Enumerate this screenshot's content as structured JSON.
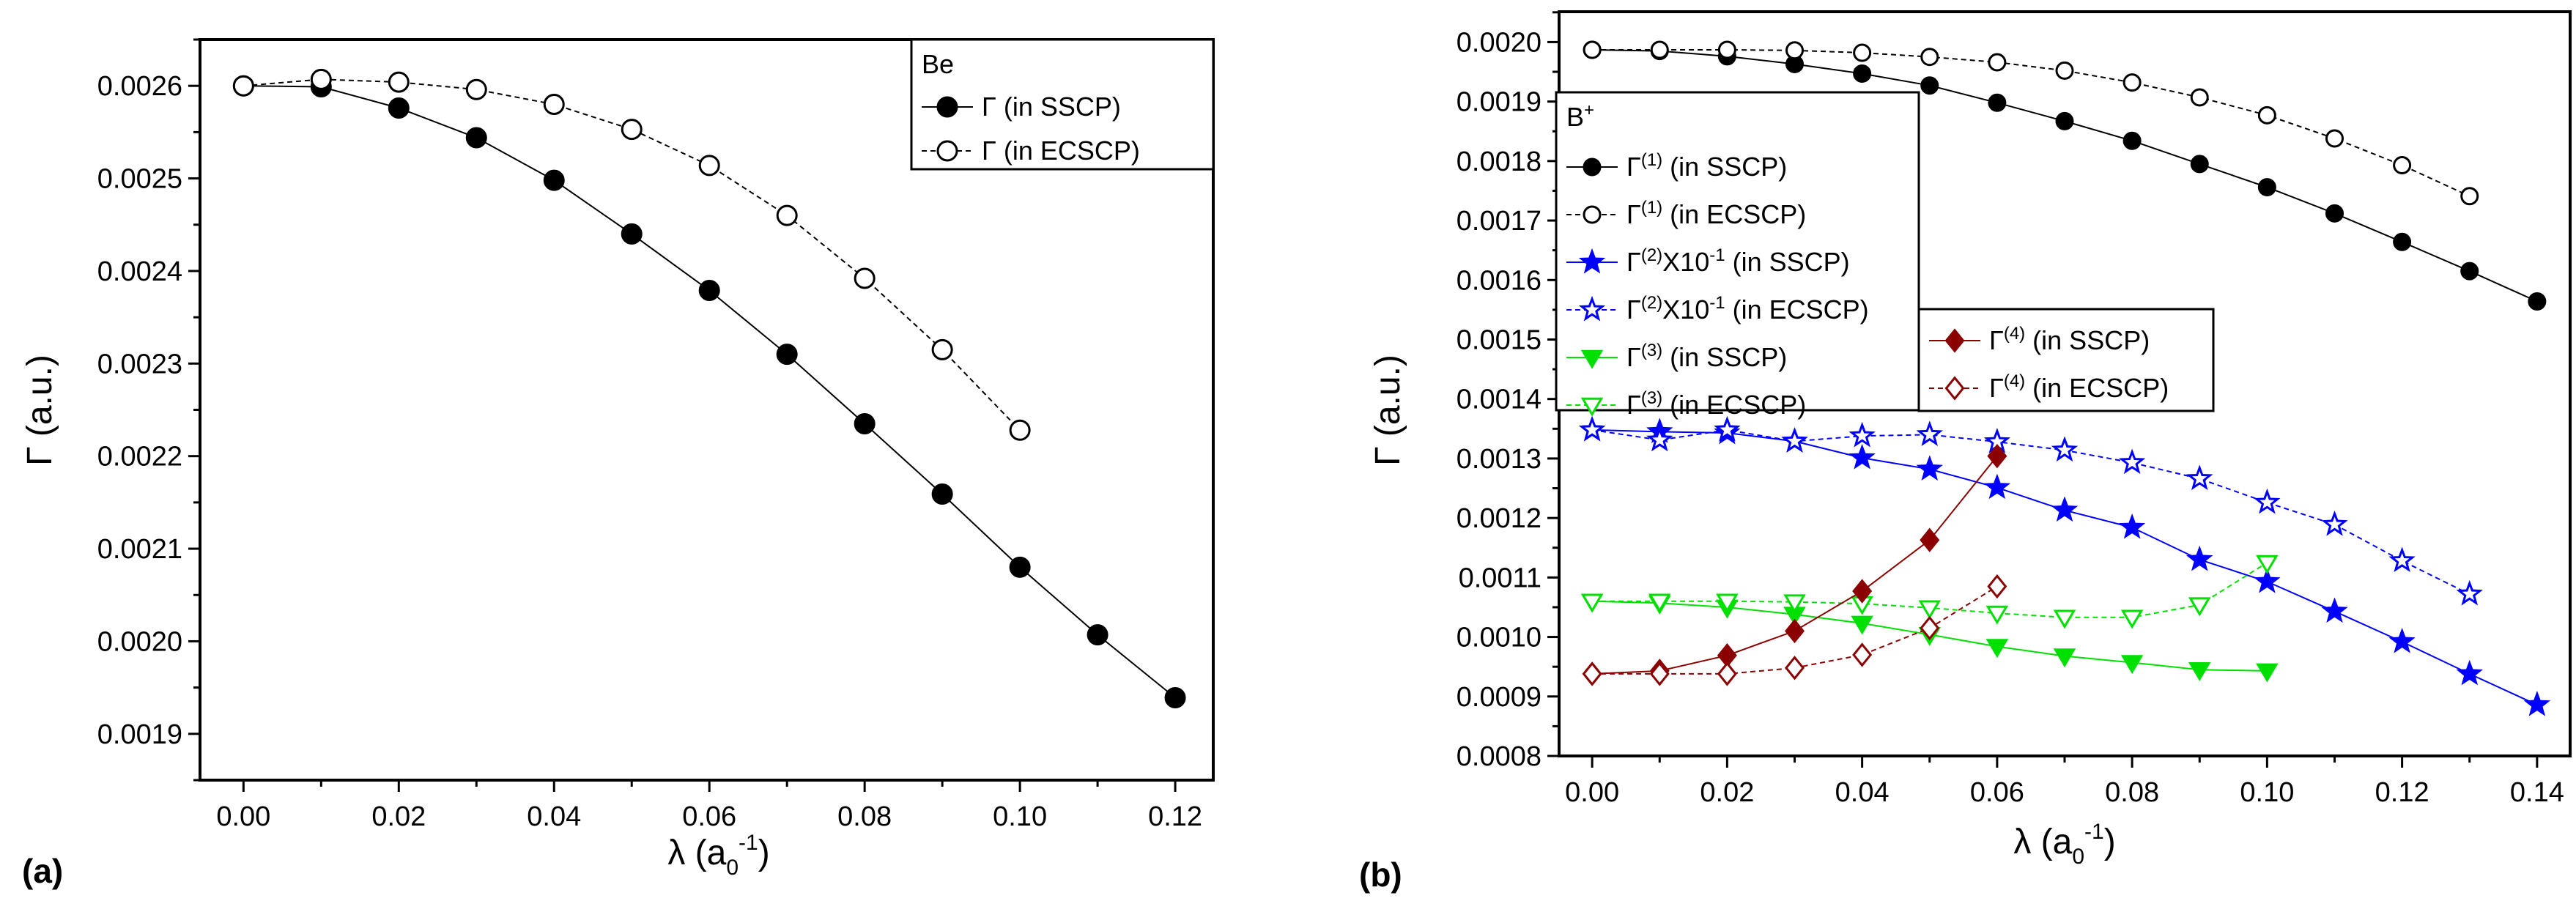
{
  "chart_data": [
    {
      "type": "line",
      "panel_label": "(a)",
      "xlabel": {
        "base": "λ (a",
        "sub": "0",
        "sup": "-1",
        "end": ")"
      },
      "ylabel": "Γ (a.u.)",
      "xlim": [
        -0.0056,
        0.1249
      ],
      "ylim": [
        0.00185,
        0.00265
      ],
      "xticks": [
        "0.00",
        "0.02",
        "0.04",
        "0.06",
        "0.08",
        "0.10",
        "0.12"
      ],
      "yticks": [
        "0.0019",
        "0.0020",
        "0.0021",
        "0.0022",
        "0.0023",
        "0.0024",
        "0.0025",
        "0.0026"
      ],
      "legend": {
        "title": "Be",
        "title_sup": "",
        "placement": "top-right"
      },
      "series": [
        {
          "name": "Γ (in SSCP)",
          "label": {
            "base": "Γ",
            "sup": "",
            "mid": "",
            "sup2": "",
            "rest": " (in SSCP)"
          },
          "color": "#000000",
          "marker": "circle",
          "filled": true,
          "dashed": false,
          "x": [
            0,
            0.01,
            0.02,
            0.03,
            0.04,
            0.05,
            0.06,
            0.07,
            0.08,
            0.09,
            0.1,
            0.11,
            0.12
          ],
          "y": [
            0.0026,
            0.002599,
            0.002576,
            0.002544,
            0.002498,
            0.00244,
            0.002379,
            0.00231,
            0.002235,
            0.002159,
            0.00208,
            0.002007,
            0.001939
          ]
        },
        {
          "name": "Γ (in ECSCP)",
          "label": {
            "base": "Γ",
            "sup": "",
            "mid": "",
            "sup2": "",
            "rest": " (in ECSCP)"
          },
          "color": "#000000",
          "marker": "circle",
          "filled": false,
          "dashed": true,
          "x": [
            0,
            0.01,
            0.02,
            0.03,
            0.04,
            0.05,
            0.06,
            0.07,
            0.08,
            0.09,
            0.1
          ],
          "y": [
            0.0026,
            0.002607,
            0.002604,
            0.002596,
            0.00258,
            0.002553,
            0.002514,
            0.00246,
            0.002392,
            0.002315,
            0.002228
          ]
        }
      ]
    },
    {
      "type": "line",
      "panel_label": "(b)",
      "xlabel": {
        "base": "λ (a",
        "sub": "0",
        "sup": "-1",
        "end": ")"
      },
      "ylabel": "Γ (a.u.)",
      "xlim": [
        -0.0049,
        0.1449
      ],
      "ylim": [
        0.0008,
        0.002051
      ],
      "xticks": [
        "0.00",
        "0.02",
        "0.04",
        "0.06",
        "0.08",
        "0.10",
        "0.12",
        "0.14"
      ],
      "yticks": [
        "0.0008",
        "0.0009",
        "0.0010",
        "0.0011",
        "0.0012",
        "0.0013",
        "0.0014",
        "0.0015",
        "0.0016",
        "0.0017",
        "0.0018",
        "0.0019",
        "0.0020"
      ],
      "legend": {
        "title": "B",
        "title_sup": "+",
        "placement": "upper-left"
      },
      "series": [
        {
          "name": "Γ(1) (in SSCP)",
          "label": {
            "base": "Γ",
            "sup": "(1)",
            "mid": "",
            "sup2": "",
            "rest": " (in SSCP)"
          },
          "color": "#000000",
          "marker": "circle",
          "filled": true,
          "dashed": false,
          "legend_group": 1,
          "x": [
            0,
            0.01,
            0.02,
            0.03,
            0.04,
            0.05,
            0.06,
            0.07,
            0.08,
            0.09,
            0.1,
            0.11,
            0.12,
            0.13,
            0.14
          ],
          "y": [
            0.001987,
            0.001985,
            0.001976,
            0.001963,
            0.001947,
            0.001927,
            0.001898,
            0.001867,
            0.001834,
            0.001795,
            0.001756,
            0.001712,
            0.001664,
            0.001615,
            0.001564
          ]
        },
        {
          "name": "Γ(1) (in ECSCP)",
          "label": {
            "base": "Γ",
            "sup": "(1)",
            "mid": "",
            "sup2": "",
            "rest": " (in ECSCP)"
          },
          "color": "#000000",
          "marker": "circle",
          "filled": false,
          "dashed": true,
          "legend_group": 1,
          "x": [
            0,
            0.01,
            0.02,
            0.03,
            0.04,
            0.05,
            0.06,
            0.07,
            0.08,
            0.09,
            0.1,
            0.11,
            0.12,
            0.13
          ],
          "y": [
            0.001987,
            0.001987,
            0.001987,
            0.001986,
            0.001982,
            0.001975,
            0.001966,
            0.001952,
            0.001932,
            0.001907,
            0.001877,
            0.001838,
            0.001793,
            0.001741
          ]
        },
        {
          "name": "Γ(2)X10-1 (in SSCP)",
          "label": {
            "base": "Γ",
            "sup": "(2)",
            "mid": "X10",
            "sup2": "-1",
            "rest": " (in SSCP)"
          },
          "color": "#0000FF",
          "marker": "star",
          "filled": true,
          "dashed": false,
          "legend_group": 1,
          "x": [
            0,
            0.01,
            0.02,
            0.03,
            0.04,
            0.05,
            0.06,
            0.07,
            0.08,
            0.09,
            0.1,
            0.11,
            0.12,
            0.13,
            0.14
          ],
          "y": [
            0.001348,
            0.001345,
            0.001343,
            0.001329,
            0.001301,
            0.001282,
            0.001251,
            0.001213,
            0.001184,
            0.00113,
            0.001093,
            0.001043,
            0.000992,
            0.000938,
            0.000886
          ]
        },
        {
          "name": "Γ(2)X10-1 (in ECSCP)",
          "label": {
            "base": "Γ",
            "sup": "(2)",
            "mid": "X10",
            "sup2": "-1",
            "rest": " (in ECSCP)"
          },
          "color": "#0000FF",
          "marker": "star",
          "filled": false,
          "dashed": true,
          "legend_group": 1,
          "x": [
            0,
            0.01,
            0.02,
            0.03,
            0.04,
            0.05,
            0.06,
            0.07,
            0.08,
            0.09,
            0.1,
            0.11,
            0.12,
            0.13
          ],
          "y": [
            0.001348,
            0.001331,
            0.001348,
            0.001329,
            0.001338,
            0.00134,
            0.001328,
            0.001314,
            0.001293,
            0.001266,
            0.001226,
            0.001189,
            0.001128,
            0.001072
          ]
        },
        {
          "name": "Γ(3) (in SSCP)",
          "label": {
            "base": "Γ",
            "sup": "(3)",
            "mid": "",
            "sup2": "",
            "rest": " (in SSCP)"
          },
          "color": "#00E000",
          "marker": "triangle-down",
          "filled": true,
          "dashed": false,
          "legend_group": 1,
          "x": [
            0,
            0.01,
            0.02,
            0.03,
            0.04,
            0.05,
            0.06,
            0.07,
            0.08,
            0.09,
            0.1
          ],
          "y": [
            0.00106,
            0.001057,
            0.00105,
            0.001038,
            0.001023,
            0.001004,
            0.000984,
            0.000968,
            0.000957,
            0.000945,
            0.000943
          ]
        },
        {
          "name": "Γ(3) (in ECSCP)",
          "label": {
            "base": "Γ",
            "sup": "(3)",
            "mid": "",
            "sup2": "",
            "rest": " (in ECSCP)"
          },
          "color": "#00E000",
          "marker": "triangle-down",
          "filled": false,
          "dashed": true,
          "legend_group": 1,
          "x": [
            0,
            0.01,
            0.02,
            0.03,
            0.04,
            0.05,
            0.06,
            0.07,
            0.08,
            0.09,
            0.1
          ],
          "y": [
            0.00106,
            0.00106,
            0.00106,
            0.001059,
            0.001056,
            0.001049,
            0.00104,
            0.001033,
            0.001033,
            0.001054,
            0.001125
          ]
        },
        {
          "name": "Γ(4) (in SSCP)",
          "label": {
            "base": "Γ",
            "sup": "(4)",
            "mid": "",
            "sup2": "",
            "rest": " (in SSCP)"
          },
          "color": "#8B0000",
          "marker": "diamond",
          "filled": true,
          "dashed": false,
          "legend_group": 2,
          "x": [
            0,
            0.01,
            0.02,
            0.03,
            0.04,
            0.05,
            0.06
          ],
          "y": [
            0.000938,
            0.000943,
            0.000969,
            0.00101,
            0.001077,
            0.001163,
            0.001304
          ]
        },
        {
          "name": "Γ(4) (in ECSCP)",
          "label": {
            "base": "Γ",
            "sup": "(4)",
            "mid": "",
            "sup2": "",
            "rest": " (in ECSCP)"
          },
          "color": "#8B0000",
          "marker": "diamond",
          "filled": false,
          "dashed": true,
          "legend_group": 2,
          "x": [
            0,
            0.01,
            0.02,
            0.03,
            0.04,
            0.05,
            0.06
          ],
          "y": [
            0.000938,
            0.000938,
            0.000938,
            0.000948,
            0.00097,
            0.001015,
            0.001085
          ]
        }
      ]
    }
  ]
}
